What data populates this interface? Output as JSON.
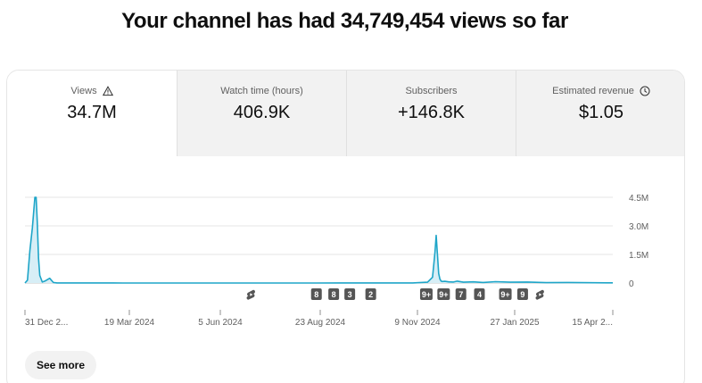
{
  "headline": "Your channel has had 34,749,454 views so far",
  "tabs": [
    {
      "label": "Views",
      "value": "34.7M",
      "icon": "warning-icon",
      "active": true
    },
    {
      "label": "Watch time (hours)",
      "value": "406.9K",
      "icon": "",
      "active": false
    },
    {
      "label": "Subscribers",
      "value": "+146.8K",
      "icon": "",
      "active": false
    },
    {
      "label": "Estimated revenue",
      "value": "$1.05",
      "icon": "clock-icon",
      "active": false
    }
  ],
  "chart_data": {
    "type": "area",
    "y_ticks": [
      "4.5M",
      "3.0M",
      "1.5M",
      "0"
    ],
    "ylim": [
      0,
      4500000
    ],
    "x_tick_labels": [
      "31 Dec 2...",
      "19 Mar 2024",
      "5 Jun 2024",
      "23 Aug 2024",
      "9 Nov 2024",
      "27 Jan 2025",
      "15 Apr 2..."
    ],
    "x": [
      "2023-12-31",
      "2024-01-02",
      "2024-01-04",
      "2024-01-06",
      "2024-01-08",
      "2024-01-09",
      "2024-01-10",
      "2024-01-11",
      "2024-01-12",
      "2024-01-14",
      "2024-01-16",
      "2024-01-20",
      "2024-01-23",
      "2024-01-26",
      "2024-02-01",
      "2024-03-19",
      "2024-06-05",
      "2024-08-23",
      "2024-11-09",
      "2024-11-21",
      "2024-11-25",
      "2024-11-27",
      "2024-11-28",
      "2024-11-29",
      "2024-11-30",
      "2024-12-01",
      "2024-12-02",
      "2024-12-03",
      "2024-12-05",
      "2024-12-08",
      "2024-12-12",
      "2024-12-15",
      "2024-12-20",
      "2024-12-28",
      "2025-01-05",
      "2025-01-15",
      "2025-01-27",
      "2025-02-10",
      "2025-02-25",
      "2025-03-15",
      "2025-04-15",
      "2025-04-20"
    ],
    "values": [
      0,
      150000,
      1700000,
      2900000,
      4500000,
      4500000,
      3200000,
      1300000,
      400000,
      50000,
      100000,
      250000,
      30000,
      5000,
      3000,
      2000,
      2000,
      2000,
      5000,
      40000,
      300000,
      1600000,
      2500000,
      1500000,
      500000,
      200000,
      100000,
      80000,
      90000,
      60000,
      50000,
      100000,
      40000,
      60000,
      30000,
      70000,
      40000,
      50000,
      20000,
      30000,
      10000,
      10000
    ],
    "color": "#1ea5c8",
    "fill_color": "#d7eef6",
    "grid": true,
    "markers": [
      {
        "date": "2024-07-01",
        "label": "",
        "icon": "shorts-icon"
      },
      {
        "date": "2024-08-23",
        "label": "8",
        "icon": ""
      },
      {
        "date": "2024-09-06",
        "label": "8",
        "icon": ""
      },
      {
        "date": "2024-09-19",
        "label": "3",
        "icon": ""
      },
      {
        "date": "2024-10-06",
        "label": "2",
        "icon": ""
      },
      {
        "date": "2024-11-20",
        "label": "9+",
        "icon": ""
      },
      {
        "date": "2024-12-04",
        "label": "9+",
        "icon": ""
      },
      {
        "date": "2024-12-18",
        "label": "7",
        "icon": ""
      },
      {
        "date": "2025-01-02",
        "label": "4",
        "icon": ""
      },
      {
        "date": "2025-01-23",
        "label": "9+",
        "icon": ""
      },
      {
        "date": "2025-02-06",
        "label": "9",
        "icon": ""
      },
      {
        "date": "2025-02-20",
        "label": "",
        "icon": "shorts-icon"
      }
    ]
  },
  "see_more_label": "See more"
}
